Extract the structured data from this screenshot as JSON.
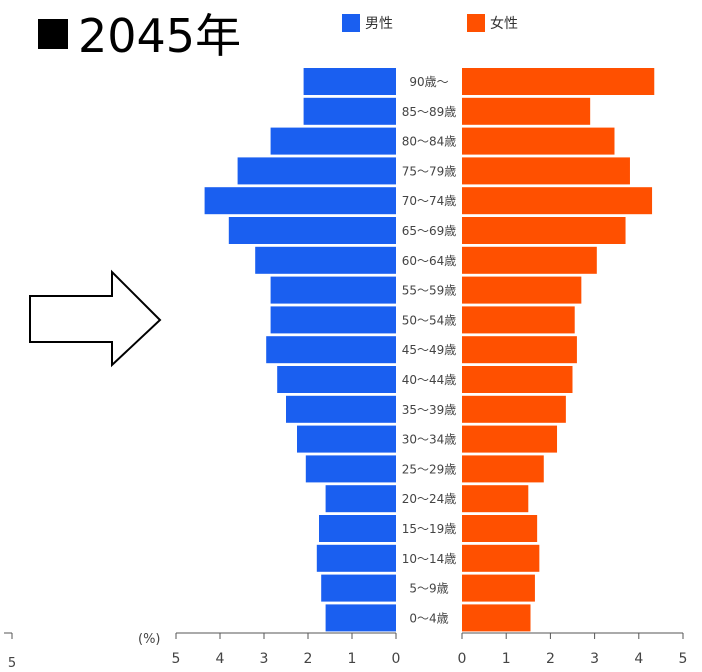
{
  "title": "2045年",
  "legend": [
    {
      "name": "男性",
      "color": "#1a5ff0"
    },
    {
      "name": "女性",
      "color": "#ff5000"
    }
  ],
  "arrow_icon": "right-arrow-outline-icon",
  "chart_data": {
    "type": "bar",
    "orientation": "horizontal-population-pyramid",
    "categories": [
      "90歳～",
      "85～89歳",
      "80～84歳",
      "75～79歳",
      "70～74歳",
      "65～69歳",
      "60～64歳",
      "55～59歳",
      "50～54歳",
      "45～49歳",
      "40～44歳",
      "35～39歳",
      "30～34歳",
      "25～29歳",
      "20～24歳",
      "15～19歳",
      "10～14歳",
      "5～9歳",
      "0～4歳"
    ],
    "series": [
      {
        "name": "男性",
        "color": "#1a5ff0",
        "values": [
          2.1,
          2.1,
          2.85,
          3.6,
          4.35,
          3.8,
          3.2,
          2.85,
          2.85,
          2.95,
          2.7,
          2.5,
          2.25,
          2.05,
          1.6,
          1.75,
          1.8,
          1.7,
          1.6
        ]
      },
      {
        "name": "女性",
        "color": "#ff5000",
        "values": [
          4.35,
          2.9,
          3.45,
          3.8,
          4.3,
          3.7,
          3.05,
          2.7,
          2.55,
          2.6,
          2.5,
          2.35,
          2.15,
          1.85,
          1.5,
          1.7,
          1.75,
          1.65,
          1.55
        ]
      }
    ],
    "xlabel": "(%)",
    "xlim": [
      0,
      5
    ],
    "ticks": [
      "5",
      "4",
      "3",
      "2",
      "1",
      "0",
      "0",
      "1",
      "2",
      "3",
      "4",
      "5"
    ],
    "edge_tick_label": "5",
    "grid": false,
    "legend_position": "top"
  }
}
